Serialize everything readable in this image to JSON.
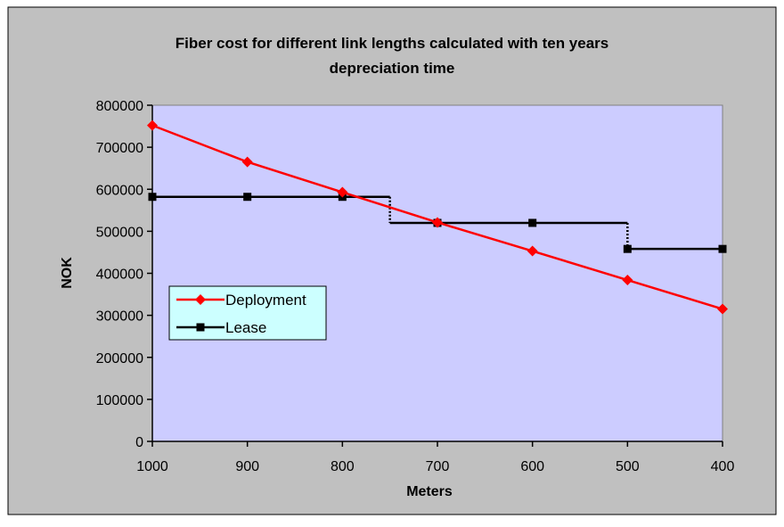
{
  "chart_data": {
    "type": "line",
    "title_line1": "Fiber cost for different link lengths calculated with ten years",
    "title_line2": "depreciation time",
    "xlabel": "Meters",
    "ylabel": "NOK",
    "x": [
      1000,
      900,
      800,
      700,
      600,
      500,
      400
    ],
    "x_tick_labels": [
      "1000",
      "900",
      "800",
      "700",
      "600",
      "500",
      "400"
    ],
    "xlim": [
      1000,
      400
    ],
    "x_reversed": true,
    "y_tick_labels": [
      "0",
      "100000",
      "200000",
      "300000",
      "400000",
      "500000",
      "600000",
      "700000",
      "800000"
    ],
    "ylim": [
      0,
      800000
    ],
    "grid": false,
    "legend_position": "left",
    "plot_background": "#ccccff",
    "chart_background": "#c0c0c0",
    "series": [
      {
        "name": "Deployment",
        "color": "#ff0000",
        "marker": "diamond",
        "step": false,
        "values": [
          752000,
          665000,
          593000,
          521000,
          453000,
          384000,
          315000
        ]
      },
      {
        "name": "Lease",
        "color": "#000000",
        "marker": "square",
        "step": true,
        "step_boundaries": [
          750,
          500
        ],
        "values": [
          582000,
          582000,
          582000,
          520000,
          520000,
          458000,
          458000
        ]
      }
    ]
  }
}
